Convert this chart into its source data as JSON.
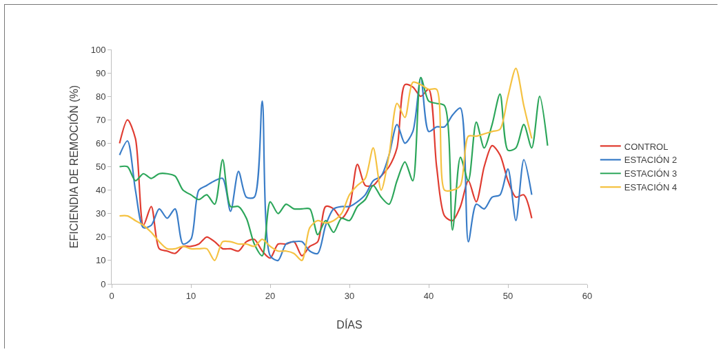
{
  "chart_data": {
    "type": "line",
    "xlabel": "DÍAS",
    "ylabel": "EFICIENDIA DE REMOCIÓN (%)",
    "xlim": [
      0,
      60
    ],
    "xticks": [
      0,
      10,
      20,
      30,
      40,
      50,
      60
    ],
    "ylim": [
      0,
      100
    ],
    "yticks": [
      0,
      10,
      20,
      30,
      40,
      50,
      60,
      70,
      80,
      90,
      100
    ],
    "grid": false,
    "legend": "right",
    "marker": "none",
    "line_style": "solid",
    "series": [
      {
        "name": "CONTROL",
        "color": "#e03c31",
        "x": [
          1,
          2,
          3,
          4,
          5,
          6,
          7,
          8,
          9,
          10,
          11,
          12,
          13,
          14,
          15,
          16,
          17,
          18,
          19,
          20,
          21,
          22,
          23,
          24,
          25,
          26,
          27,
          28,
          29,
          30,
          31,
          32,
          33,
          34,
          35,
          36,
          37,
          38,
          39,
          40,
          41,
          42,
          43,
          44,
          45,
          46,
          47,
          48,
          49,
          50,
          51,
          52,
          53
        ],
        "values": [
          60,
          70,
          62,
          25,
          33,
          15,
          14,
          13,
          16,
          16,
          17,
          20,
          18,
          15,
          15,
          14,
          18,
          19,
          14,
          11,
          17,
          17,
          18,
          12,
          16,
          18,
          33,
          32,
          28,
          33,
          51,
          42,
          42,
          46,
          50,
          58,
          85,
          84,
          80,
          83,
          50,
          29,
          27,
          33,
          44,
          35,
          50,
          59,
          55,
          44,
          37,
          38,
          28
        ]
      },
      {
        "name": "ESTACIÓN 2",
        "color": "#3a7dc8",
        "x": [
          1,
          2,
          3,
          4,
          5,
          6,
          7,
          8,
          9,
          10,
          11,
          12,
          13,
          14,
          15,
          16,
          17,
          18,
          19,
          20,
          21,
          22,
          23,
          24,
          25,
          26,
          27,
          28,
          29,
          30,
          31,
          32,
          33,
          34,
          35,
          36,
          37,
          38,
          39,
          40,
          41,
          42,
          43,
          44,
          45,
          46,
          47,
          48,
          49,
          50,
          51,
          52,
          53
        ],
        "values": [
          55,
          61,
          40,
          24,
          25,
          32,
          28,
          32,
          17,
          19,
          40,
          42,
          44,
          45,
          31,
          48,
          37,
          37,
          78,
          12,
          10,
          17,
          18,
          18,
          14,
          13,
          25,
          32,
          33,
          33,
          35,
          38,
          44,
          46,
          55,
          68,
          60,
          65,
          88,
          65,
          67,
          67,
          72,
          75,
          18,
          34,
          32,
          37,
          38,
          49,
          27,
          53,
          38
        ]
      },
      {
        "name": "ESTACIÓN 3",
        "color": "#2ca65a",
        "x": [
          1,
          2,
          3,
          4,
          5,
          6,
          7,
          8,
          9,
          10,
          11,
          12,
          13,
          14,
          15,
          16,
          17,
          18,
          19,
          20,
          21,
          22,
          23,
          24,
          25,
          26,
          27,
          28,
          29,
          30,
          31,
          32,
          33,
          34,
          35,
          36,
          37,
          38,
          39,
          40,
          41,
          42,
          43,
          44,
          45,
          46,
          47,
          48,
          49,
          50,
          51,
          52,
          53,
          54,
          55
        ],
        "values": [
          50,
          50,
          44,
          47,
          45,
          47,
          47,
          46,
          40,
          38,
          36,
          38,
          34,
          53,
          33,
          33,
          28,
          17,
          12,
          35,
          30,
          34,
          32,
          32,
          32,
          21,
          27,
          22,
          28,
          27,
          33,
          36,
          42,
          37,
          34,
          44,
          52,
          44,
          88,
          78,
          77,
          76,
          23,
          54,
          44,
          69,
          58,
          68,
          81,
          57,
          58,
          68,
          58,
          80,
          59
        ]
      },
      {
        "name": "ESTACIÓN 4",
        "color": "#f5c242",
        "x": [
          1,
          2,
          3,
          4,
          5,
          6,
          7,
          8,
          9,
          10,
          11,
          12,
          13,
          14,
          15,
          16,
          17,
          18,
          19,
          20,
          21,
          22,
          23,
          24,
          25,
          26,
          27,
          28,
          29,
          30,
          31,
          32,
          33,
          34,
          35,
          36,
          37,
          38,
          39,
          40,
          41,
          42,
          43,
          44,
          45,
          46,
          47,
          48,
          49,
          50,
          51,
          52,
          53
        ],
        "values": [
          29,
          29,
          27,
          25,
          22,
          18,
          15,
          15,
          16,
          15,
          15,
          15,
          10,
          18,
          18,
          17,
          17,
          16,
          19,
          16,
          14,
          14,
          13,
          10,
          24,
          27,
          26,
          27,
          30,
          38,
          42,
          45,
          58,
          40,
          55,
          77,
          71,
          86,
          85,
          83,
          83,
          40,
          40,
          42,
          63,
          63,
          64,
          65,
          66,
          80,
          92,
          76,
          62
        ]
      }
    ]
  }
}
